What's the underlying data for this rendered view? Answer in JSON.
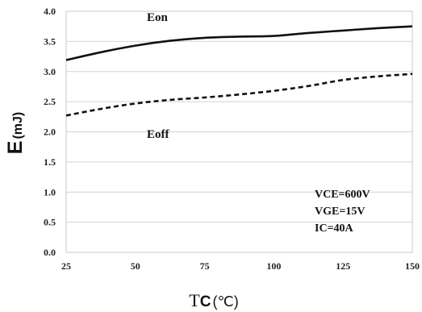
{
  "chart_data": {
    "type": "line",
    "x": [
      25,
      37.5,
      50,
      62.5,
      75,
      87.5,
      100,
      112.5,
      125,
      137.5,
      150
    ],
    "series": [
      {
        "name": "Eon",
        "style": "solid",
        "values": [
          3.19,
          3.32,
          3.43,
          3.51,
          3.56,
          3.58,
          3.59,
          3.64,
          3.68,
          3.72,
          3.75
        ]
      },
      {
        "name": "Eoff",
        "style": "dashed",
        "values": [
          2.27,
          2.38,
          2.47,
          2.53,
          2.57,
          2.62,
          2.68,
          2.76,
          2.86,
          2.92,
          2.96
        ]
      }
    ],
    "xlabel_main": "T",
    "xlabel_sub": "C",
    "xlabel_unit": "(℃)",
    "ylabel_main": "E",
    "ylabel_unit": "(mJ)",
    "xlim": [
      25,
      150
    ],
    "ylim": [
      0,
      4.0
    ],
    "xticks": [
      "25",
      "50",
      "75",
      "100",
      "125",
      "150"
    ],
    "yticks": [
      "0.0",
      "0.5",
      "1.0",
      "1.5",
      "2.0",
      "2.5",
      "3.0",
      "3.5",
      "4.0"
    ],
    "conditions": [
      "VCE=600V",
      "VGE=15V",
      "IC=40A"
    ],
    "grid": "horizontal",
    "line_color": "#111111"
  }
}
